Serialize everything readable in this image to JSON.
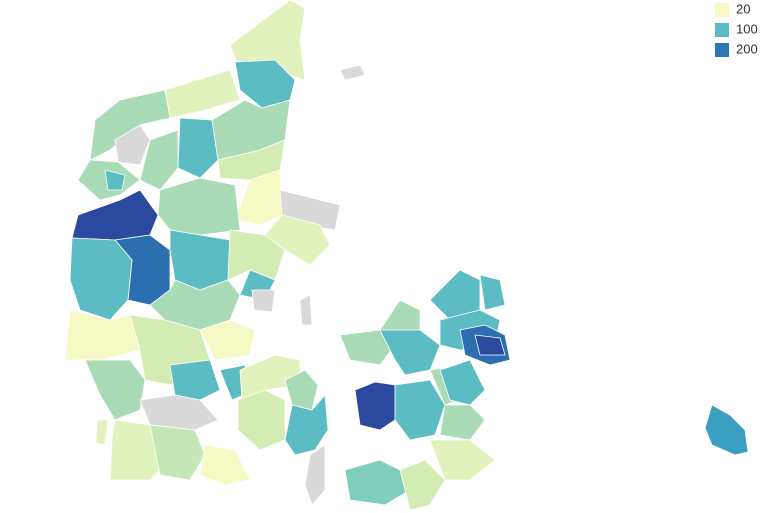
{
  "legend": {
    "items": [
      {
        "label": "20",
        "color": "#f7fbc3"
      },
      {
        "label": "100",
        "color": "#5bbdc3"
      },
      {
        "label": "200",
        "color": "#2b78b4"
      }
    ]
  }
}
